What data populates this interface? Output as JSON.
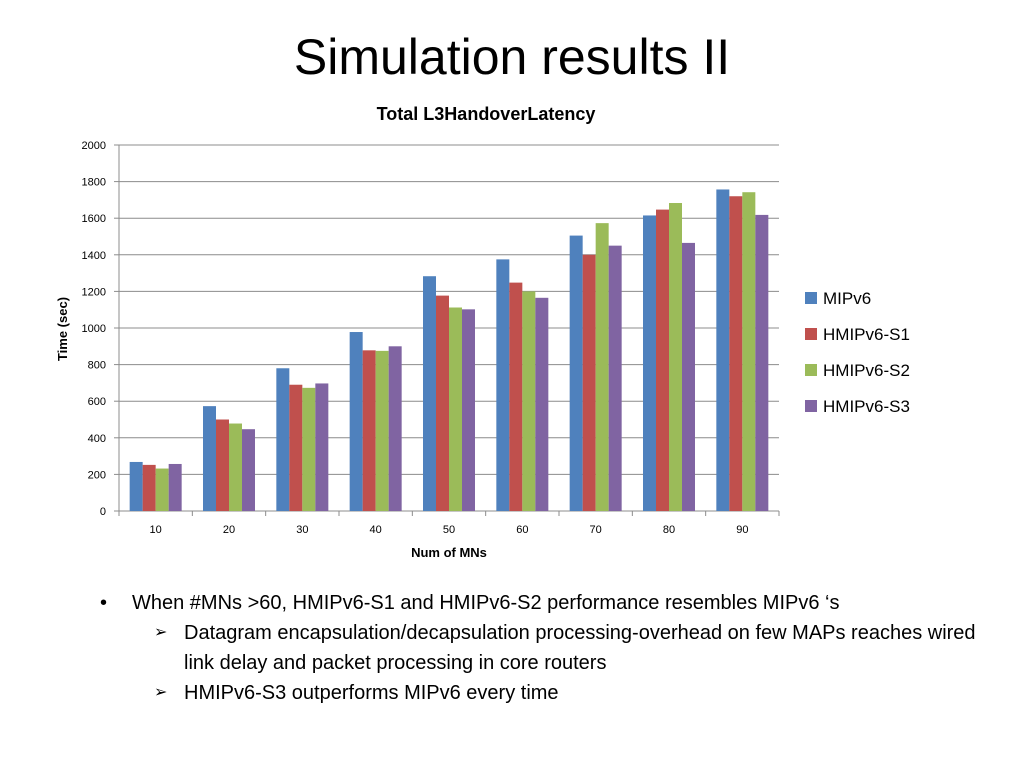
{
  "slide": {
    "title": "Simulation results II"
  },
  "chart_data": {
    "type": "bar",
    "title": "Total L3HandoverLatency",
    "xlabel": "Num of MNs",
    "ylabel": "Time (sec)",
    "ylim": [
      0,
      2000
    ],
    "yticks": [
      0,
      200,
      400,
      600,
      800,
      1000,
      1200,
      1400,
      1600,
      1800,
      2000
    ],
    "grid": true,
    "legend_position": "right",
    "categories": [
      "10",
      "20",
      "30",
      "40",
      "50",
      "60",
      "70",
      "80",
      "90"
    ],
    "series": [
      {
        "name": "MIPv6",
        "color": "#4F81BD",
        "values": [
          268,
          573,
          780,
          978,
          1283,
          1375,
          1505,
          1615,
          1757
        ]
      },
      {
        "name": "HMIPv6-S1",
        "color": "#C0504D",
        "values": [
          252,
          500,
          690,
          878,
          1177,
          1248,
          1400,
          1647,
          1720
        ]
      },
      {
        "name": "HMIPv6-S2",
        "color": "#9BBB59",
        "values": [
          232,
          478,
          673,
          875,
          1112,
          1200,
          1573,
          1683,
          1742
        ]
      },
      {
        "name": "HMIPv6-S3",
        "color": "#8064A2",
        "values": [
          257,
          447,
          697,
          900,
          1102,
          1165,
          1450,
          1465,
          1618
        ]
      }
    ]
  },
  "bullets": {
    "main_marker": "•",
    "sub_marker": "➢",
    "main": "When #MNs >60, HMIPv6-S1 and HMIPv6-S2 performance resembles MIPv6 ‘s",
    "sub1": "Datagram encapsulation/decapsulation   processing-overhead on few MAPs reaches wired link delay and packet processing in core routers",
    "sub2": "HMIPv6-S3 outperforms MIPv6 every time"
  }
}
